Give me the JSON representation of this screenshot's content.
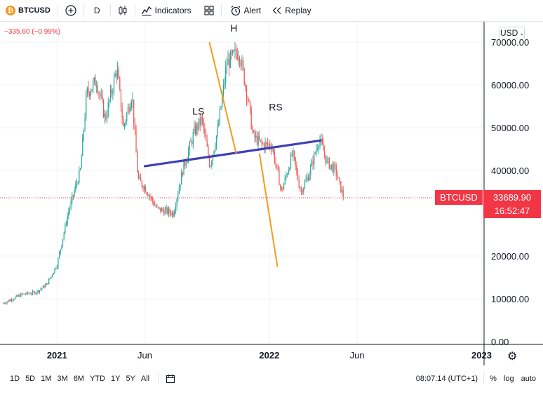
{
  "toolbar": {
    "logo_char": "₿",
    "symbol": "BTCUSD",
    "add_icon": "plus-circle-icon",
    "interval": "D",
    "chart_type_icon": "candles-icon",
    "indicators_label": "Indicators",
    "layouts_icon": "grid-icon",
    "alert_label": "Alert",
    "replay_label": "Replay"
  },
  "chart": {
    "change_text": "−335.60 (−0.99%)",
    "currency": "USD",
    "ticker": "BTCUSD",
    "last_price": "33689.90",
    "countdown": "16:52:47",
    "price_color": "#f23645",
    "up_color": "#26a69a",
    "down_color": "#ef5350",
    "neckline_color": "#3f3fb5",
    "trendline_color": "#f59c1a",
    "settings_icon": "gear-icon"
  },
  "chart_data": {
    "type": "candlestick",
    "symbol": "BTCUSD",
    "timeframe": "D",
    "y_ticks": [
      "70000.00",
      "60000.00",
      "50000.00",
      "40000.00",
      "20000.00",
      "10000.00",
      "0.00"
    ],
    "x_ticks": [
      "2021",
      "Jun",
      "2022",
      "Jun",
      "2023"
    ],
    "price_path": [
      [
        "2020-10-01",
        9000
      ],
      [
        "2020-11-01",
        11000
      ],
      [
        "2020-11-25",
        11500
      ],
      [
        "2020-12-01",
        12000
      ],
      [
        "2020-12-15",
        13500
      ],
      [
        "2021-01-01",
        18000
      ],
      [
        "2021-01-20",
        30000
      ],
      [
        "2021-02-10",
        40000
      ],
      [
        "2021-02-21",
        58000
      ],
      [
        "2021-03-10",
        61000
      ],
      [
        "2021-03-25",
        52000
      ],
      [
        "2021-04-14",
        64000
      ],
      [
        "2021-04-25",
        50000
      ],
      [
        "2021-05-10",
        58000
      ],
      [
        "2021-05-20",
        38000
      ],
      [
        "2021-06-01",
        36000
      ],
      [
        "2021-06-22",
        31000
      ],
      [
        "2021-07-20",
        30000
      ],
      [
        "2021-08-05",
        40000
      ],
      [
        "2021-08-25",
        49000
      ],
      [
        "2021-09-07",
        52000
      ],
      [
        "2021-09-21",
        41000
      ],
      [
        "2021-10-05",
        50000
      ],
      [
        "2021-10-20",
        65000
      ],
      [
        "2021-11-10",
        68000
      ],
      [
        "2021-11-25",
        57000
      ],
      [
        "2021-12-04",
        48000
      ],
      [
        "2021-12-20",
        46000
      ],
      [
        "2022-01-05",
        46000
      ],
      [
        "2022-01-22",
        35000
      ],
      [
        "2022-02-10",
        44000
      ],
      [
        "2022-02-24",
        35000
      ],
      [
        "2022-03-10",
        39000
      ],
      [
        "2022-03-28",
        47500
      ],
      [
        "2022-04-10",
        42000
      ],
      [
        "2022-04-25",
        40000
      ],
      [
        "2022-05-01",
        37000
      ],
      [
        "2022-05-09",
        33690
      ]
    ],
    "annotations": [
      {
        "label": "LS",
        "date": "2021-09-01",
        "price": 53000
      },
      {
        "label": "H",
        "date": "2021-11-01",
        "price": 72500
      },
      {
        "label": "RS",
        "date": "2022-01-12",
        "price": 54000
      }
    ],
    "neckline": [
      [
        "2021-06-01",
        41000
      ],
      [
        "2022-03-30",
        47000
      ]
    ],
    "trendlines": [
      [
        [
          "2021-09-20",
          70000
        ],
        [
          "2021-11-05",
          44000
        ]
      ],
      [
        [
          "2021-12-15",
          44000
        ],
        [
          "2022-01-15",
          17500
        ]
      ]
    ],
    "last_price": 33689.9
  },
  "bottombar": {
    "ranges": [
      "1D",
      "5D",
      "1M",
      "3M",
      "6M",
      "YTD",
      "1Y",
      "5Y",
      "All"
    ],
    "goto_icon": "calendar-icon",
    "time_label": "08:07:14 (UTC+1)",
    "percent_label": "%",
    "log_label": "log",
    "auto_label": "auto"
  }
}
